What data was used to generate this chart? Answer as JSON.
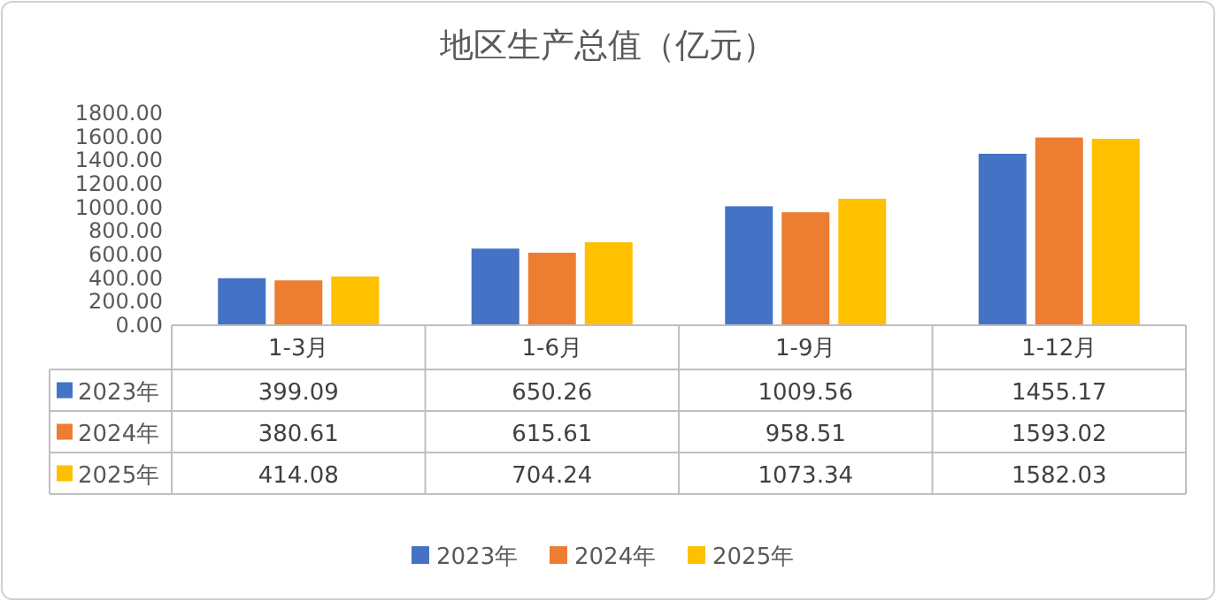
{
  "chart_data": {
    "type": "bar",
    "title": "地区生产总值（亿元）",
    "categories": [
      "1-3月",
      "1-6月",
      "1-9月",
      "1-12月"
    ],
    "series": [
      {
        "name": "2023年",
        "color": "#4472c4",
        "values": [
          399.09,
          650.26,
          1009.56,
          1455.17
        ]
      },
      {
        "name": "2024年",
        "color": "#ed7d31",
        "values": [
          380.61,
          615.61,
          958.51,
          1593.02
        ]
      },
      {
        "name": "2025年",
        "color": "#ffc000",
        "values": [
          414.08,
          704.24,
          1073.34,
          1582.03
        ]
      }
    ],
    "ylim": [
      0,
      1800
    ],
    "yticks": [
      {
        "value": 0,
        "label": "0.00"
      },
      {
        "value": 200,
        "label": "200.00"
      },
      {
        "value": 400,
        "label": "400.00"
      },
      {
        "value": 600,
        "label": "600.00"
      },
      {
        "value": 800,
        "label": "800.00"
      },
      {
        "value": 1000,
        "label": "1000.00"
      },
      {
        "value": 1200,
        "label": "1200.00"
      },
      {
        "value": 1400,
        "label": "1400.00"
      },
      {
        "value": 1600,
        "label": "1600.00"
      },
      {
        "value": 1800,
        "label": "1800.00"
      }
    ],
    "data_labels": true,
    "legend": "bottom"
  }
}
